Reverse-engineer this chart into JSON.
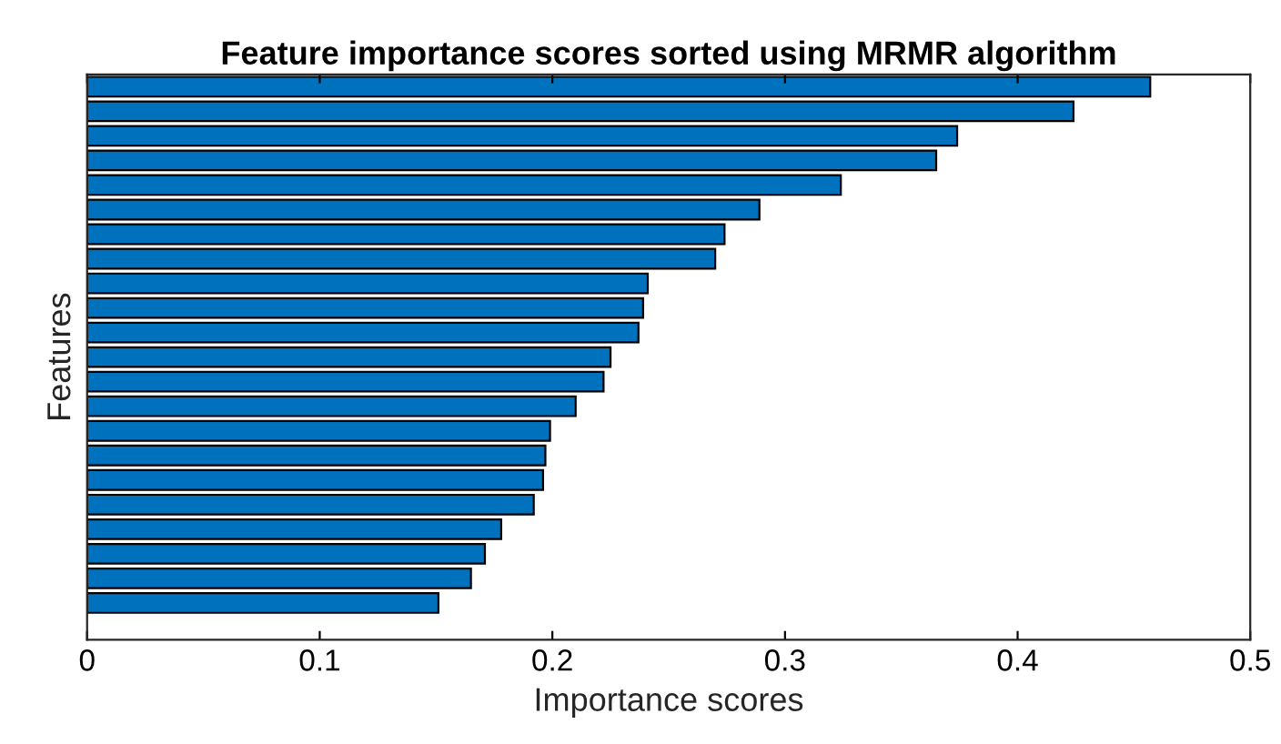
{
  "chart_data": {
    "type": "bar",
    "orientation": "horizontal",
    "title": "Feature importance scores sorted using MRMR algorithm",
    "xlabel": "Importance scores",
    "ylabel": "Features",
    "categories": [
      null,
      null,
      null,
      null,
      null,
      null,
      null,
      null,
      null,
      null,
      null,
      null,
      null,
      null,
      null,
      null,
      null,
      null,
      null,
      null,
      null,
      null
    ],
    "values": [
      0.457,
      0.424,
      0.374,
      0.365,
      0.324,
      0.289,
      0.274,
      0.27,
      0.241,
      0.239,
      0.237,
      0.225,
      0.222,
      0.21,
      0.199,
      0.197,
      0.196,
      0.192,
      0.178,
      0.171,
      0.165,
      0.151
    ],
    "color": "#0072bd",
    "xlim": [
      0,
      0.5
    ],
    "xticks": [
      0,
      0.1,
      0.2,
      0.3,
      0.4,
      0.5
    ],
    "tick_labels": "x",
    "grid": false
  }
}
